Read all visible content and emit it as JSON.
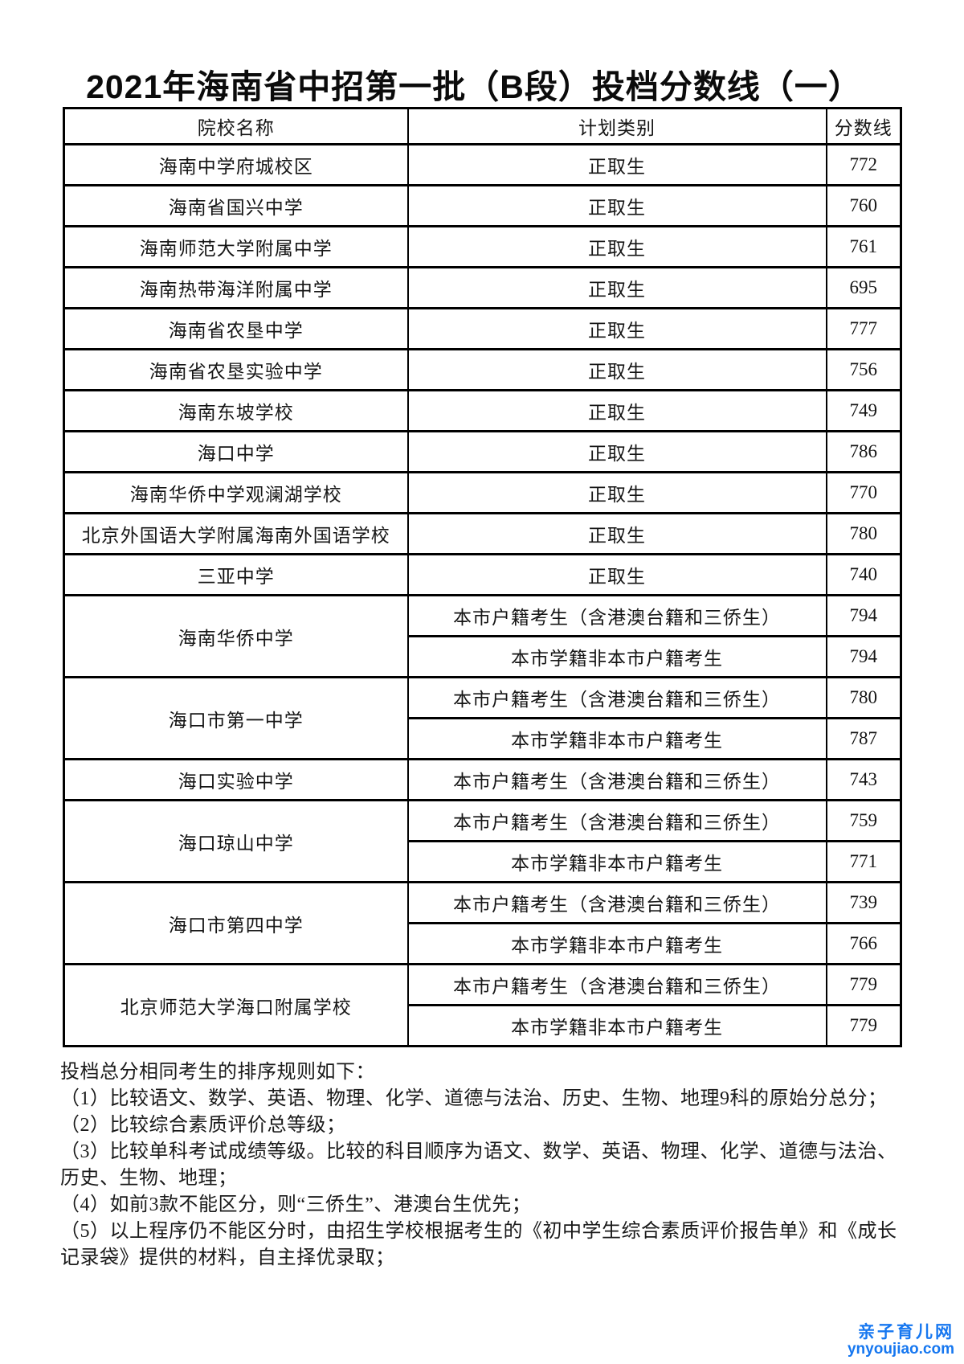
{
  "title": "2021年海南省中招第一批（B段）投档分数线（一）",
  "table": {
    "headers": [
      "院校名称",
      "计划类别",
      "分数线"
    ],
    "rows": [
      {
        "school": "海南中学府城校区",
        "entries": [
          {
            "category": "正取生",
            "score": "772"
          }
        ]
      },
      {
        "school": "海南省国兴中学",
        "entries": [
          {
            "category": "正取生",
            "score": "760"
          }
        ]
      },
      {
        "school": "海南师范大学附属中学",
        "entries": [
          {
            "category": "正取生",
            "score": "761"
          }
        ]
      },
      {
        "school": "海南热带海洋附属中学",
        "entries": [
          {
            "category": "正取生",
            "score": "695"
          }
        ]
      },
      {
        "school": "海南省农垦中学",
        "entries": [
          {
            "category": "正取生",
            "score": "777"
          }
        ]
      },
      {
        "school": "海南省农垦实验中学",
        "entries": [
          {
            "category": "正取生",
            "score": "756"
          }
        ]
      },
      {
        "school": "海南东坡学校",
        "entries": [
          {
            "category": "正取生",
            "score": "749"
          }
        ]
      },
      {
        "school": "海口中学",
        "entries": [
          {
            "category": "正取生",
            "score": "786"
          }
        ]
      },
      {
        "school": "海南华侨中学观澜湖学校",
        "entries": [
          {
            "category": "正取生",
            "score": "770"
          }
        ]
      },
      {
        "school": "北京外国语大学附属海南外国语学校",
        "entries": [
          {
            "category": "正取生",
            "score": "780"
          }
        ]
      },
      {
        "school": "三亚中学",
        "entries": [
          {
            "category": "正取生",
            "score": "740"
          }
        ]
      },
      {
        "school": "海南华侨中学",
        "entries": [
          {
            "category": "本市户籍考生（含港澳台籍和三侨生）",
            "score": "794"
          },
          {
            "category": "本市学籍非本市户籍考生",
            "score": "794"
          }
        ]
      },
      {
        "school": "海口市第一中学",
        "entries": [
          {
            "category": "本市户籍考生（含港澳台籍和三侨生）",
            "score": "780"
          },
          {
            "category": "本市学籍非本市户籍考生",
            "score": "787"
          }
        ]
      },
      {
        "school": "海口实验中学",
        "entries": [
          {
            "category": "本市户籍考生（含港澳台籍和三侨生）",
            "score": "743"
          }
        ]
      },
      {
        "school": "海口琼山中学",
        "entries": [
          {
            "category": "本市户籍考生（含港澳台籍和三侨生）",
            "score": "759"
          },
          {
            "category": "本市学籍非本市户籍考生",
            "score": "771"
          }
        ]
      },
      {
        "school": "海口市第四中学",
        "entries": [
          {
            "category": "本市户籍考生（含港澳台籍和三侨生）",
            "score": "739"
          },
          {
            "category": "本市学籍非本市户籍考生",
            "score": "766"
          }
        ]
      },
      {
        "school": "北京师范大学海口附属学校",
        "entries": [
          {
            "category": "本市户籍考生（含港澳台籍和三侨生）",
            "score": "779"
          },
          {
            "category": "本市学籍非本市户籍考生",
            "score": "779"
          }
        ]
      }
    ]
  },
  "notes": [
    "投档总分相同考生的排序规则如下：",
    "（1）比较语文、数学、英语、物理、化学、道德与法治、历史、生物、地理9科的原始分总分；",
    "（2）比较综合素质评价总等级；",
    "（3）比较单科考试成绩等级。比较的科目顺序为语文、数学、英语、物理、化学、道德与法治、",
    "历史、生物、地理；",
    "（4）如前3款不能区分，则“三侨生”、港澳台生优先；",
    "（5）以上程序仍不能区分时，由招生学校根据考生的《初中学生综合素质评价报告单》和《成长",
    "记录袋》提供的材料，自主择优录取；"
  ],
  "watermark": {
    "name": "亲子育儿网",
    "url": "ynyoujiao.com",
    "color": "#1677f0"
  }
}
